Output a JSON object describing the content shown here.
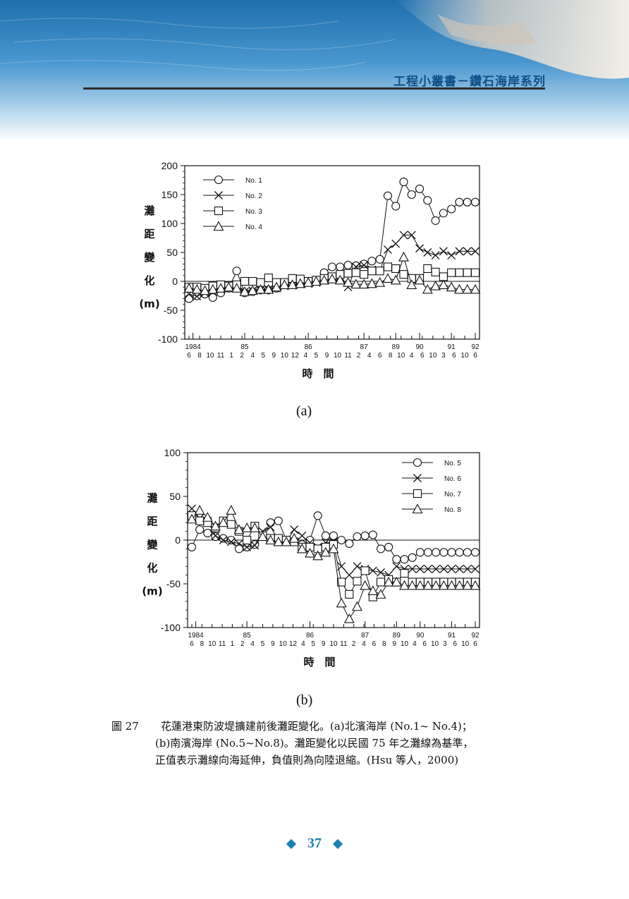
{
  "header": {
    "series_title": "工程小叢書－鑽石海岸系列"
  },
  "figure": {
    "caption_number": "圖 27",
    "caption_lines": [
      "花蓮港東防波堤擴建前後灘距變化。(a)北濱海岸 (No.1~ No.4)；",
      "(b)南濱海岸 (No.5~No.8)。灘距變化以民國 75 年之灘線為基準，",
      "正值表示灘線向海延伸，負值則為向陸退縮。(Hsu 等人，2000)"
    ],
    "panel_a_label": "(a)",
    "panel_b_label": "(b)"
  },
  "footer": {
    "page_number": "37"
  },
  "colors": {
    "header_text": "#0d4f86",
    "footer": "#1a7fb5",
    "ink": "#111111"
  },
  "chart_data": [
    {
      "type": "line",
      "panel": "(a)",
      "ylabel": [
        "灘",
        "距",
        "變",
        "化",
        "(m)"
      ],
      "xlabel": "時　間",
      "ylim": [
        -100,
        200
      ],
      "yticks": [
        200,
        150,
        100,
        50,
        0,
        -50,
        -100
      ],
      "x_year_labels": [
        {
          "label": "1984",
          "x": 0.5
        },
        {
          "label": "85",
          "x": 7
        },
        {
          "label": "86",
          "x": 15
        },
        {
          "label": "87",
          "x": 22
        },
        {
          "label": "89",
          "x": 26
        },
        {
          "label": "90",
          "x": 29
        },
        {
          "label": "91",
          "x": 33
        },
        {
          "label": "92",
          "x": 36
        }
      ],
      "x_month_labels": [
        "6",
        "8",
        "10",
        "11",
        "1",
        "2",
        "4",
        "5",
        "9",
        "10",
        "12",
        "4",
        "5",
        "9",
        "10",
        "11",
        "2",
        "4",
        "6",
        "8",
        "10",
        "4",
        "6",
        "10",
        "3",
        "6",
        "10",
        "6"
      ],
      "xlim": [
        0,
        36
      ],
      "legend": [
        "No. 1",
        "No. 2",
        "No. 3",
        "No. 4"
      ],
      "series": [
        {
          "name": "No. 1",
          "marker": "circle",
          "x": [
            0,
            1,
            2,
            3,
            4,
            5,
            6,
            7,
            8,
            9,
            10,
            11,
            12,
            13,
            14,
            15,
            16,
            17,
            18,
            19,
            20,
            21,
            22,
            23,
            24,
            25,
            26,
            27,
            28,
            29,
            30,
            31,
            32,
            33,
            34,
            35,
            36
          ],
          "y": [
            -30,
            -25,
            -22,
            -28,
            -20,
            -12,
            18,
            -20,
            -18,
            -15,
            -15,
            -12,
            -5,
            -6,
            -3,
            0,
            0,
            15,
            25,
            25,
            28,
            27,
            30,
            35,
            38,
            148,
            130,
            172,
            150,
            160,
            140,
            105,
            118,
            125,
            137,
            137,
            137
          ]
        },
        {
          "name": "No. 2",
          "marker": "x",
          "x": [
            0,
            1,
            2,
            3,
            4,
            5,
            6,
            7,
            8,
            9,
            10,
            11,
            12,
            13,
            14,
            15,
            16,
            17,
            18,
            19,
            20,
            21,
            22,
            23,
            24,
            25,
            26,
            27,
            28,
            29,
            30,
            31,
            32,
            33,
            34,
            35,
            36
          ],
          "y": [
            -22,
            -26,
            -20,
            -18,
            -14,
            -12,
            -10,
            -18,
            -16,
            -15,
            -14,
            -12,
            -8,
            -7,
            -5,
            -4,
            -2,
            2,
            5,
            8,
            -10,
            25,
            28,
            20,
            18,
            55,
            65,
            80,
            80,
            57,
            50,
            45,
            52,
            45,
            52,
            52,
            52
          ]
        },
        {
          "name": "No. 3",
          "marker": "square",
          "x": [
            0,
            1,
            2,
            3,
            4,
            5,
            6,
            7,
            8,
            9,
            10,
            11,
            12,
            13,
            14,
            15,
            16,
            17,
            18,
            19,
            20,
            21,
            22,
            23,
            24,
            25,
            26,
            27,
            28,
            29,
            30,
            31,
            32,
            33,
            34,
            35,
            36
          ],
          "y": [
            -10,
            -10,
            -12,
            -8,
            -6,
            -8,
            -6,
            0,
            0,
            -2,
            6,
            -2,
            -2,
            5,
            4,
            0,
            2,
            5,
            8,
            12,
            14,
            15,
            12,
            18,
            18,
            25,
            22,
            12,
            5,
            5,
            22,
            16,
            8,
            15,
            15,
            15,
            15
          ]
        },
        {
          "name": "No. 4",
          "marker": "triangle",
          "x": [
            0,
            1,
            2,
            3,
            4,
            5,
            6,
            7,
            8,
            9,
            10,
            11,
            12,
            13,
            14,
            15,
            16,
            17,
            18,
            19,
            20,
            21,
            22,
            23,
            24,
            25,
            26,
            27,
            28,
            29,
            30,
            31,
            32,
            33,
            34,
            35,
            36
          ],
          "y": [
            -12,
            -14,
            -16,
            -14,
            -12,
            -10,
            -12,
            -18,
            -16,
            -14,
            -14,
            -10,
            -6,
            -6,
            -4,
            -2,
            0,
            2,
            4,
            2,
            -2,
            -5,
            -5,
            -4,
            -2,
            5,
            2,
            42,
            -6,
            2,
            -14,
            -8,
            -6,
            -10,
            -14,
            -14,
            -14
          ]
        }
      ]
    },
    {
      "type": "line",
      "panel": "(b)",
      "ylabel": [
        "灘",
        "距",
        "變",
        "化",
        "(m)"
      ],
      "xlabel": "時　間",
      "ylim": [
        -100,
        100
      ],
      "yticks": [
        100,
        50,
        0,
        -50,
        -100
      ],
      "x_year_labels": [
        {
          "label": "1984",
          "x": 0.5
        },
        {
          "label": "85",
          "x": 7
        },
        {
          "label": "86",
          "x": 15
        },
        {
          "label": "87",
          "x": 22
        },
        {
          "label": "89",
          "x": 26
        },
        {
          "label": "90",
          "x": 29
        },
        {
          "label": "91",
          "x": 33
        },
        {
          "label": "92",
          "x": 36
        }
      ],
      "x_month_labels": [
        "6",
        "8",
        "10",
        "11",
        "1",
        "2",
        "4",
        "5",
        "9",
        "10",
        "12",
        "4",
        "5",
        "9",
        "10",
        "11",
        "2",
        "4",
        "6",
        "8",
        "9",
        "10",
        "4",
        "6",
        "10",
        "3",
        "6",
        "10",
        "6"
      ],
      "xlim": [
        0,
        36
      ],
      "legend": [
        "No. 5",
        "No. 6",
        "No. 7",
        "No. 8"
      ],
      "series": [
        {
          "name": "No. 5",
          "marker": "circle",
          "x": [
            0,
            1,
            2,
            3,
            4,
            5,
            6,
            7,
            8,
            9,
            10,
            11,
            12,
            13,
            14,
            15,
            16,
            17,
            18,
            19,
            20,
            21,
            22,
            23,
            24,
            25,
            26,
            27,
            28,
            29,
            30,
            31,
            32,
            33,
            34,
            35,
            36
          ],
          "y": [
            -8,
            12,
            8,
            4,
            2,
            0,
            -10,
            -8,
            -5,
            5,
            20,
            22,
            0,
            -2,
            -5,
            0,
            28,
            5,
            5,
            0,
            -4,
            4,
            5,
            6,
            -10,
            -8,
            -22,
            -22,
            -20,
            -14,
            -14,
            -14,
            -14,
            -14,
            -14,
            -14,
            -14
          ]
        },
        {
          "name": "No. 6",
          "marker": "x",
          "x": [
            0,
            1,
            2,
            3,
            4,
            5,
            6,
            7,
            8,
            9,
            10,
            11,
            12,
            13,
            14,
            15,
            16,
            17,
            18,
            19,
            20,
            21,
            22,
            23,
            24,
            25,
            26,
            27,
            28,
            29,
            30,
            31,
            32,
            33,
            34,
            35,
            36
          ],
          "y": [
            36,
            25,
            22,
            5,
            0,
            -2,
            -4,
            -8,
            -6,
            10,
            15,
            0,
            -2,
            12,
            5,
            -3,
            -8,
            -3,
            -2,
            -30,
            -40,
            -30,
            -33,
            -35,
            -37,
            -40,
            -30,
            -33,
            -33,
            -33,
            -33,
            -33,
            -33,
            -33,
            -33,
            -33,
            -33
          ]
        },
        {
          "name": "No. 7",
          "marker": "square",
          "x": [
            0,
            1,
            2,
            3,
            4,
            5,
            6,
            7,
            8,
            9,
            10,
            11,
            12,
            13,
            14,
            15,
            16,
            17,
            18,
            19,
            20,
            21,
            22,
            23,
            24,
            25,
            26,
            27,
            28,
            29,
            30,
            31,
            32,
            33,
            34,
            35,
            36
          ],
          "y": [
            28,
            22,
            20,
            14,
            22,
            18,
            10,
            0,
            16,
            5,
            2,
            2,
            0,
            -2,
            -8,
            -8,
            -10,
            -8,
            -5,
            -48,
            -62,
            -47,
            -35,
            -65,
            -48,
            -45,
            -48,
            -38,
            -48,
            -48,
            -48,
            -48,
            -48,
            -48,
            -48,
            -48,
            -48
          ]
        },
        {
          "name": "No. 8",
          "marker": "triangle",
          "x": [
            0,
            1,
            2,
            3,
            4,
            5,
            6,
            7,
            8,
            9,
            10,
            11,
            12,
            13,
            14,
            15,
            16,
            17,
            18,
            19,
            20,
            21,
            22,
            23,
            24,
            25,
            26,
            27,
            28,
            29,
            30,
            31,
            32,
            33,
            34,
            35,
            36
          ],
          "y": [
            24,
            34,
            26,
            16,
            20,
            34,
            12,
            14,
            14,
            4,
            0,
            -2,
            -2,
            2,
            -10,
            -15,
            -18,
            -14,
            -10,
            -72,
            -90,
            -76,
            -52,
            -58,
            -62,
            -48,
            -48,
            -52,
            -52,
            -52,
            -52,
            -52,
            -52,
            -52,
            -52,
            -52,
            -52
          ]
        }
      ]
    }
  ]
}
